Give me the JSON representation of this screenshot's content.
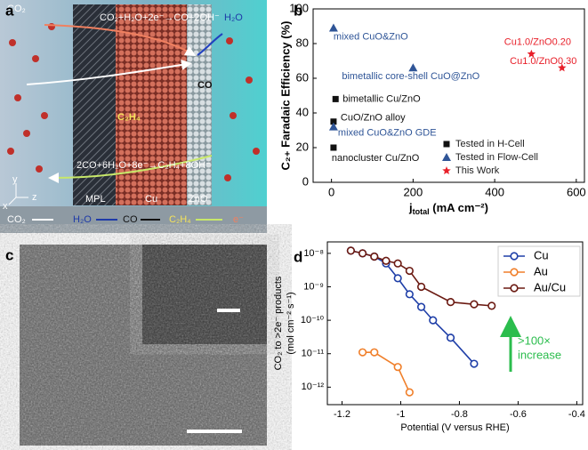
{
  "panels": [
    "a",
    "b",
    "c",
    "d"
  ],
  "schematic": {
    "co2": "CO₂",
    "h2o": "H₂O",
    "co": "CO",
    "c2h4": "C₂H₄",
    "reaction1": "CO₂+H₂O+2e⁻→CO+2OH⁻",
    "reaction2": "2CO+6H₂O+8e⁻→C₂H₄+8OH⁻",
    "layers": [
      "MPL",
      "Cu",
      "ZnO"
    ],
    "axes": [
      "y",
      "x",
      "z"
    ],
    "legend": [
      "CO₂",
      "H₂O",
      "CO",
      "C₂H₄",
      "e⁻"
    ]
  },
  "chart_data": [
    {
      "type": "scatter",
      "ylabel": "C₂₊ Faradaic Efficiency (%)",
      "xlabel": [
        "j",
        "total",
        " (mA cm⁻²)"
      ],
      "xlim": [
        -45,
        620
      ],
      "ylim": [
        0,
        100
      ],
      "xticks": [
        0,
        200,
        400,
        600
      ],
      "yticks": [
        0,
        20,
        40,
        60,
        80,
        100
      ],
      "series": [
        {
          "name": "Tested in H-Cell",
          "color": "#111111",
          "marker": "square",
          "x": [
            10,
            5,
            5
          ],
          "values": [
            48,
            35,
            20
          ],
          "labels": [
            "bimetallic Cu/ZnO",
            "CuO/ZnO alloy",
            "nanocluster Cu/ZnO"
          ]
        },
        {
          "name": "Tested in Flow-Cell",
          "color": "#2f5597",
          "marker": "triangle",
          "x": [
            5,
            200,
            5
          ],
          "values": [
            89,
            66,
            32
          ],
          "labels": [
            "mixed CuO&ZnO",
            "bimetallic core-shell CuO@ZnO",
            "mixed CuO&ZnO GDE"
          ]
        },
        {
          "name": "This Work",
          "color": "#e8202a",
          "marker": "star",
          "x": [
            490,
            565
          ],
          "values": [
            74,
            66
          ],
          "labels": [
            "Cu1.0/ZnO0.20",
            "Cu1.0/ZnO0.30"
          ]
        }
      ]
    },
    {
      "type": "line",
      "log_y": true,
      "ylabel": [
        "CO₂ to >2e⁻ products",
        "(mol cm⁻² s⁻¹)"
      ],
      "xlabel": "Potential (V versus RHE)",
      "xlim": [
        -1.25,
        -0.38
      ],
      "ylim": [
        3e-13,
        2.2e-08
      ],
      "xticks": [
        -1.2,
        -1.0,
        -0.8,
        -0.6,
        -0.4
      ],
      "yticks": [
        {
          "value": 1e-12,
          "label": "10⁻¹²"
        },
        {
          "value": 1e-11,
          "label": "10⁻¹¹"
        },
        {
          "value": 1e-10,
          "label": "10⁻¹⁰"
        },
        {
          "value": 1e-09,
          "label": "10⁻⁹"
        },
        {
          "value": 1e-08,
          "label": "10⁻⁸"
        }
      ],
      "series": [
        {
          "name": "Cu",
          "color": "#1f3fa8",
          "x": [
            -1.17,
            -1.13,
            -1.09,
            -1.05,
            -1.01,
            -0.97,
            -0.93,
            -0.89,
            -0.83,
            -0.75
          ],
          "values": [
            1.2e-08,
            1e-08,
            8e-09,
            5e-09,
            1.8e-09,
            6e-10,
            2.5e-10,
            1e-10,
            3e-11,
            5e-12
          ]
        },
        {
          "name": "Au",
          "color": "#f07f2a",
          "x": [
            -1.13,
            -1.09,
            -1.01,
            -0.97
          ],
          "values": [
            1.1e-11,
            1.1e-11,
            4e-12,
            7e-13
          ]
        },
        {
          "name": "Au/Cu",
          "color": "#6b1a12",
          "x": [
            -1.17,
            -1.13,
            -1.09,
            -1.05,
            -1.01,
            -0.97,
            -0.93,
            -0.83,
            -0.75,
            -0.69
          ],
          "values": [
            1.2e-08,
            1e-08,
            8e-09,
            6e-09,
            5e-09,
            3e-09,
            1e-09,
            3.5e-10,
            3e-10,
            2.7e-10
          ]
        }
      ],
      "annotations": [
        ">100×",
        "increase"
      ],
      "annotation_color": "#2bbd4d"
    }
  ]
}
